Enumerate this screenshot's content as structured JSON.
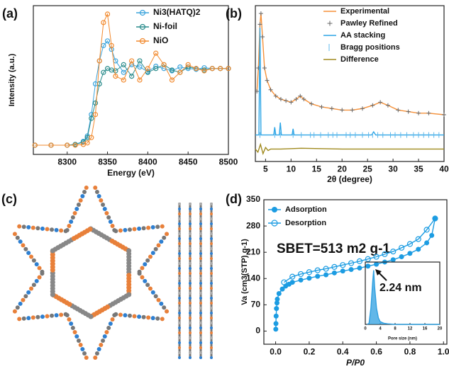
{
  "chart_data": [
    {
      "type": "line",
      "panel_label": "(a)",
      "xlabel": "Energy (eV)",
      "ylabel": "Intensity (a.u.)",
      "xlim": [
        8258,
        8500
      ],
      "xticks": [
        8300,
        8350,
        8400,
        8450,
        8500
      ],
      "ylim": [
        -0.12,
        1.82
      ],
      "legend": "upper right",
      "x": [
        8260,
        8280,
        8300,
        8310,
        8320,
        8325,
        8330,
        8335,
        8340,
        8345,
        8350,
        8355,
        8360,
        8370,
        8380,
        8390,
        8400,
        8410,
        8420,
        8430,
        8440,
        8450,
        8460,
        8470,
        8480,
        8490,
        8500
      ],
      "series": [
        {
          "name": "Ni3(HATQ)2",
          "color": "#3aa3dc",
          "marker": "open-circle",
          "line": true,
          "values": [
            0,
            0,
            0,
            0.01,
            0.05,
            0.12,
            0.4,
            0.8,
            1.1,
            1.3,
            1.36,
            1.25,
            1.1,
            0.95,
            1.05,
            1.02,
            0.96,
            1.03,
            1.0,
            0.97,
            1.02,
            1.0,
            0.99,
            1.01,
            1.0,
            1.0,
            1.0
          ]
        },
        {
          "name": "Ni-foil",
          "color": "#2a8c8c",
          "marker": "open-circle",
          "line": true,
          "values": [
            0,
            0,
            0,
            0.01,
            0.04,
            0.1,
            0.35,
            0.55,
            0.8,
            0.95,
            1.0,
            0.98,
            0.97,
            1.05,
            0.9,
            1.1,
            0.95,
            1.0,
            1.05,
            0.98,
            0.95,
            1.02,
            1.0,
            0.98,
            1.0,
            1.0,
            1.0
          ]
        },
        {
          "name": "NiO",
          "color": "#f28a2e",
          "marker": "open-circle",
          "line": true,
          "values": [
            0,
            0,
            0,
            0,
            0.01,
            0.03,
            0.1,
            0.4,
            1.1,
            1.6,
            1.71,
            1.3,
            0.9,
            0.85,
            1.1,
            0.85,
            1.0,
            1.2,
            1.05,
            0.85,
            0.95,
            1.05,
            1.0,
            0.97,
            1.0,
            1.0,
            1.0
          ]
        }
      ]
    },
    {
      "type": "line",
      "panel_label": "(b)",
      "xlabel": "2θ (degree)",
      "xlim": [
        3,
        40
      ],
      "xticks": [
        5,
        10,
        15,
        20,
        25,
        30,
        35,
        40
      ],
      "ylim": [
        0,
        100
      ],
      "legend": "upper right",
      "series": [
        {
          "name": "Experimental",
          "color": "#f5913a",
          "marker": "none",
          "line": true,
          "x": [
            3.3,
            3.6,
            3.9,
            4.1,
            4.4,
            4.8,
            5.3,
            6,
            7,
            8,
            9,
            10,
            11,
            11.8,
            12.5,
            14,
            16,
            18,
            20,
            22,
            24,
            26,
            27.5,
            29,
            31,
            33,
            35,
            37,
            40
          ],
          "values": [
            45,
            60,
            88,
            95,
            80,
            60,
            52,
            46,
            42,
            40,
            39,
            38,
            40,
            42,
            40,
            37,
            35,
            34,
            33,
            33,
            34,
            36,
            38,
            36,
            33,
            32,
            31,
            31,
            30
          ]
        },
        {
          "name": "Pawley Refined",
          "color": "#666666",
          "marker": "plus",
          "line": false,
          "x": [
            3.3,
            3.6,
            3.9,
            4.1,
            4.4,
            4.8,
            5.3,
            6,
            7,
            8,
            9,
            10,
            11,
            11.8,
            12.5,
            14,
            16,
            18,
            20,
            22,
            24,
            26,
            27.5,
            29,
            31,
            33,
            35,
            37,
            40
          ],
          "values": [
            45,
            60,
            88,
            95,
            80,
            60,
            52,
            46,
            42,
            40,
            39,
            38,
            40,
            42,
            40,
            37,
            35,
            34,
            33,
            33,
            34,
            36,
            38,
            36,
            33,
            32,
            31,
            31,
            30
          ]
        },
        {
          "name": "AA stacking",
          "color": "#2ea6e6",
          "marker": "none",
          "line": true,
          "x": [
            3,
            3.7,
            3.9,
            4.1,
            4.5,
            6.6,
            6.8,
            7.0,
            7.7,
            7.9,
            8.1,
            10.2,
            10.4,
            10.6,
            25.8,
            26.2,
            26.6,
            40
          ],
          "values": [
            17,
            17,
            86,
            17,
            17,
            17,
            22,
            17,
            17,
            25,
            17,
            17,
            21,
            17,
            17,
            19,
            17,
            17
          ]
        },
        {
          "name": "Bragg positions",
          "color": "#5fb8ec",
          "marker": "tick",
          "x": [
            3.9,
            6.8,
            7.9,
            10.4,
            12,
            13.8,
            14.5,
            15.8,
            17.3,
            18.2,
            19,
            20.8,
            21.6,
            22.6,
            24,
            25.2,
            26,
            27,
            28,
            29.5,
            30.4,
            31.5,
            32.7,
            34,
            35,
            36,
            37,
            38,
            39
          ]
        },
        {
          "name": "Difference",
          "color": "#a08a1e",
          "marker": "none",
          "line": true,
          "x": [
            3,
            3.5,
            4,
            4.5,
            5,
            5.5,
            6,
            8,
            12,
            20,
            30,
            40
          ],
          "values": [
            8,
            6,
            11,
            5,
            9,
            7,
            8,
            8,
            8.5,
            8,
            8,
            8
          ]
        }
      ]
    },
    {
      "type": "line",
      "panel_label": "(d)",
      "xlabel": "P/P0",
      "ylabel": "Va (cm3(STP) g-1)",
      "annotation": "SBET=513 m2 g-1",
      "xlim": [
        -0.07,
        1.02
      ],
      "xticks": [
        {
          "value": 0,
          "label": "0.0"
        },
        0.2,
        0.4,
        0.6,
        0.8,
        {
          "value": 1,
          "label": "1.0"
        }
      ],
      "ylim": [
        -35,
        350
      ],
      "yticks": [
        0,
        70,
        140,
        210,
        280,
        350
      ],
      "legend": "upper left",
      "series": [
        {
          "name": "Adsorption",
          "color": "#1c9ce2",
          "marker": "filled-circle",
          "line": true,
          "x": [
            0.001,
            0.002,
            0.003,
            0.005,
            0.008,
            0.01,
            0.02,
            0.04,
            0.06,
            0.08,
            0.1,
            0.15,
            0.2,
            0.25,
            0.3,
            0.35,
            0.4,
            0.45,
            0.5,
            0.55,
            0.6,
            0.65,
            0.7,
            0.75,
            0.8,
            0.85,
            0.9,
            0.93,
            0.95
          ],
          "values": [
            5,
            20,
            40,
            60,
            75,
            85,
            100,
            112,
            120,
            125,
            130,
            136,
            141,
            146,
            150,
            155,
            160,
            164,
            168,
            173,
            178,
            184,
            190,
            198,
            207,
            218,
            235,
            255,
            300
          ]
        },
        {
          "name": "Desorption",
          "color": "#1c9ce2",
          "marker": "open-circle",
          "line": true,
          "x": [
            0.95,
            0.9,
            0.85,
            0.8,
            0.75,
            0.7,
            0.65,
            0.6,
            0.55,
            0.5,
            0.45,
            0.4,
            0.35,
            0.3,
            0.25,
            0.2,
            0.15,
            0.1,
            0.05
          ],
          "values": [
            300,
            270,
            245,
            232,
            222,
            212,
            205,
            198,
            192,
            186,
            181,
            176,
            171,
            166,
            162,
            157,
            152,
            145,
            130
          ]
        }
      ]
    },
    {
      "type": "area",
      "xlabel": "Pore size (nm)",
      "annotation": "2.24 nm",
      "xlim": [
        0,
        20
      ],
      "xticks": [
        0,
        4,
        8,
        12,
        16,
        20
      ],
      "ylim": [
        0,
        1.15
      ],
      "series": [
        {
          "color": "#2e9fe0",
          "marker": "none",
          "line": true,
          "fill": true,
          "x": [
            0.5,
            1,
            1.5,
            2,
            2.24,
            2.5,
            3,
            3.5,
            4,
            5,
            6,
            8,
            12,
            16,
            20
          ],
          "values": [
            0,
            0.02,
            0.3,
            0.8,
            1,
            0.7,
            0.3,
            0.12,
            0.05,
            0.02,
            0.01,
            0,
            0,
            0,
            0
          ]
        }
      ]
    }
  ],
  "structure": {
    "panel_label": "(c)"
  }
}
